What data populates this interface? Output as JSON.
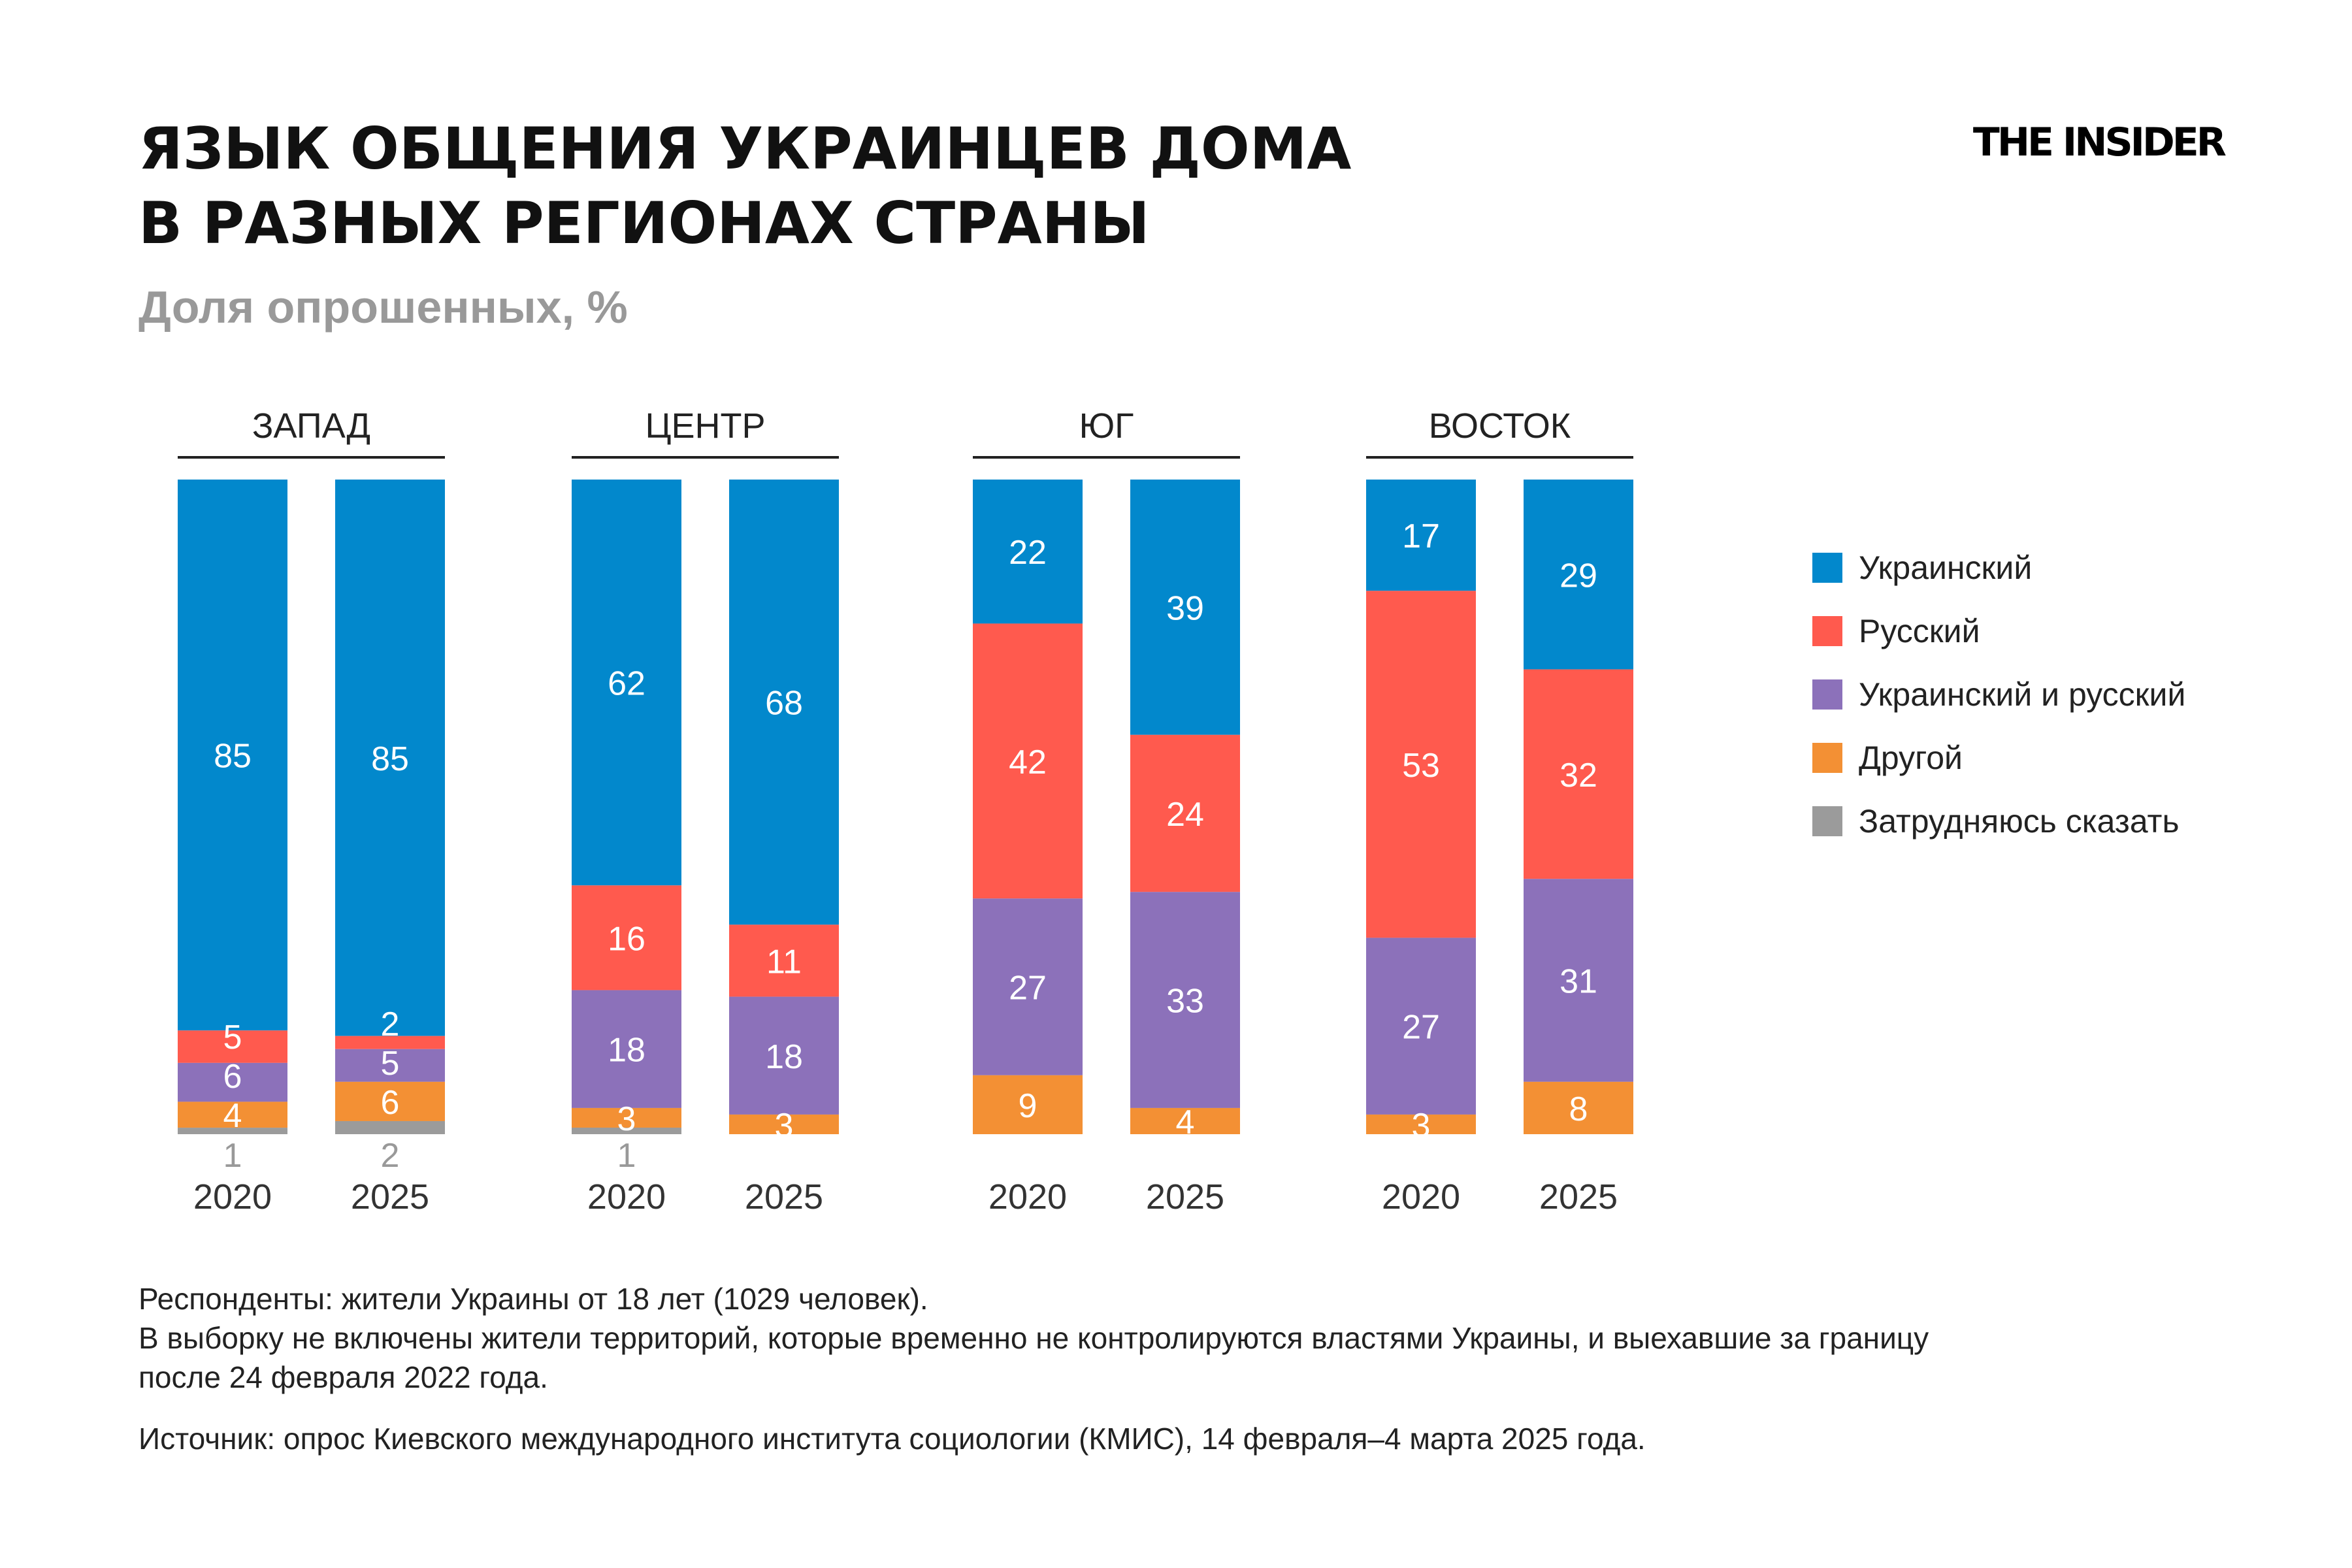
{
  "title_lines": [
    "ЯЗЫК ОБЩЕНИЯ УКРАИНЦЕВ ДОМА",
    "В РАЗНЫХ РЕГИОНАХ СТРАНЫ"
  ],
  "subtitle": "Доля опрошенных, %",
  "logo": "THE INSIDER",
  "chart_data": {
    "type": "bar",
    "stacked": true,
    "normalized_percent": true,
    "title": "ЯЗЫК ОБЩЕНИЯ УКРАИНЦЕВ ДОМА В РАЗНЫХ РЕГИОНАХ СТРАНЫ",
    "subtitle": "Доля опрошенных, %",
    "legend_position": "right",
    "grid": false,
    "series": [
      {
        "name": "Украинский",
        "color": "#0288CC"
      },
      {
        "name": "Русский",
        "color": "#FF5A4E"
      },
      {
        "name": "Украинский и русский",
        "color": "#8C71BA"
      },
      {
        "name": "Другой",
        "color": "#F39034"
      },
      {
        "name": "Затрудняюсь сказать",
        "color": "#9B9B9B"
      }
    ],
    "groups": [
      {
        "region": "ЗАПАД",
        "bars": [
          {
            "year": "2020",
            "values": [
              85,
              5,
              6,
              4,
              1
            ]
          },
          {
            "year": "2025",
            "values": [
              85,
              2,
              5,
              6,
              2
            ]
          }
        ]
      },
      {
        "region": "ЦЕНТР",
        "bars": [
          {
            "year": "2020",
            "values": [
              62,
              16,
              18,
              3,
              1
            ]
          },
          {
            "year": "2025",
            "values": [
              68,
              11,
              18,
              3,
              0
            ]
          }
        ]
      },
      {
        "region": "ЮГ",
        "bars": [
          {
            "year": "2020",
            "values": [
              22,
              42,
              27,
              9,
              0
            ]
          },
          {
            "year": "2025",
            "values": [
              39,
              24,
              33,
              4,
              0
            ]
          }
        ]
      },
      {
        "region": "ВОСТОК",
        "bars": [
          {
            "year": "2020",
            "values": [
              17,
              53,
              27,
              3,
              0
            ]
          },
          {
            "year": "2025",
            "values": [
              29,
              32,
              31,
              8,
              0
            ]
          }
        ]
      }
    ]
  },
  "notes": [
    "Респонденты: жители Украины от 18 лет (1029 человек).",
    "В выборку не включены жители территорий, которые временно не контролируются властями Украины, и выехавшие за границу",
    "после 24 февраля 2022 года.",
    "Источник: опрос Киевского международного института социологии (КМИС), 14 февраля–4 марта 2025 года."
  ]
}
